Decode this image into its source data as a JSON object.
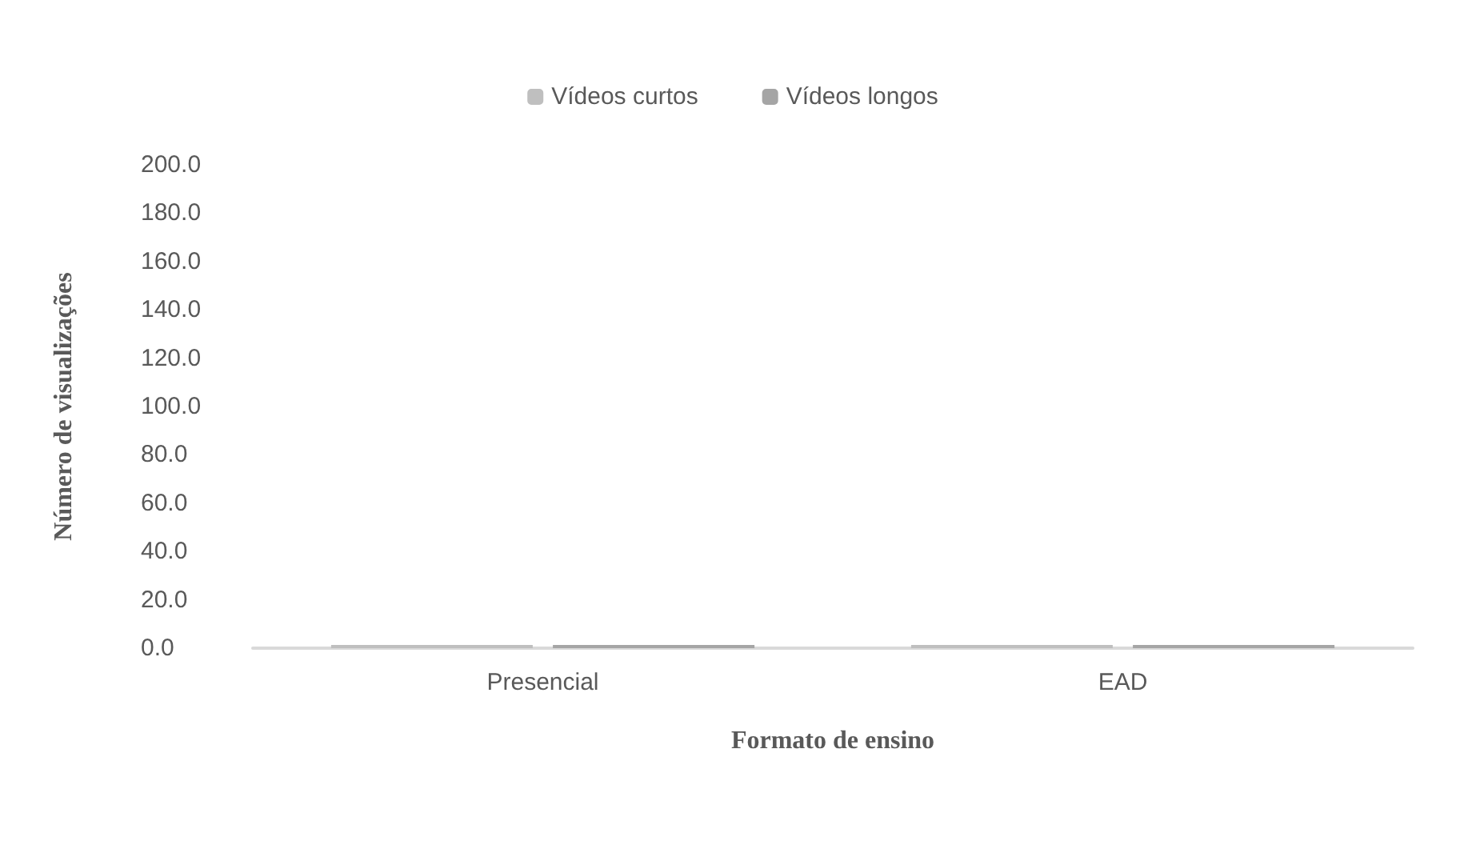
{
  "chart_data": {
    "type": "bar",
    "xlabel": "Formato de ensino",
    "ylabel": "Número de visualizações",
    "categories": [
      "Presencial",
      "EAD"
    ],
    "series": [
      {
        "name": "Vídeos curtos",
        "color": "#bfbfbf",
        "values": [
          0,
          0
        ]
      },
      {
        "name": "Vídeos longos",
        "color": "#a5a5a5",
        "values": [
          0,
          0
        ]
      }
    ],
    "ylim": [
      0,
      200
    ],
    "yticks": [
      {
        "value": 0,
        "label": "0.0"
      },
      {
        "value": 20,
        "label": "20.0"
      },
      {
        "value": 40,
        "label": "40.0"
      },
      {
        "value": 60,
        "label": "60.0"
      },
      {
        "value": 80,
        "label": "80.0"
      },
      {
        "value": 100,
        "label": "100.0"
      },
      {
        "value": 120,
        "label": "120.0"
      },
      {
        "value": 140,
        "label": "140.0"
      },
      {
        "value": 160,
        "label": "160.0"
      },
      {
        "value": 180,
        "label": "180.0"
      },
      {
        "value": 200,
        "label": "200.0"
      }
    ],
    "grid": false,
    "legend": "top"
  }
}
